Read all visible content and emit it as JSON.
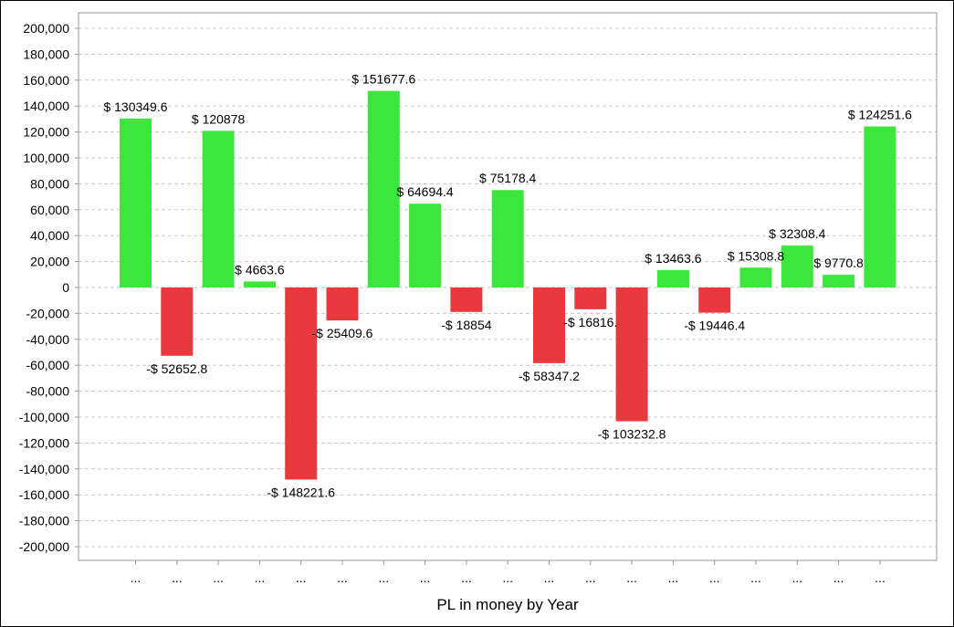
{
  "chart_data": {
    "type": "bar",
    "xlabel": "PL in money by Year",
    "ylabel": "",
    "ylim": [
      -200000,
      200000
    ],
    "ytick_step": 20000,
    "yticks": [
      "200,000",
      "180,000",
      "160,000",
      "140,000",
      "120,000",
      "100,000",
      "80,000",
      "60,000",
      "40,000",
      "20,000",
      "0",
      "-20,000",
      "-40,000",
      "-60,000",
      "-80,000",
      "-100,000",
      "-120,000",
      "-140,000",
      "-160,000",
      "-180,000",
      "-200,000"
    ],
    "grid": true,
    "colors": {
      "positive": "#3ce63c",
      "negative": "#e83a3e"
    },
    "categories": [
      "...",
      "...",
      "...",
      "...",
      "...",
      "...",
      "...",
      "...",
      "...",
      "...",
      "...",
      "...",
      "...",
      "...",
      "...",
      "...",
      "...",
      "...",
      "..."
    ],
    "values": [
      130349.6,
      -52652.8,
      120878,
      4663.6,
      -148221.6,
      -25409.6,
      151677.6,
      64694.4,
      -18854,
      75178.4,
      -58347.2,
      -16816,
      -103232.8,
      13463.6,
      -19446.4,
      15308.8,
      32308.4,
      9770.8,
      124251.6
    ],
    "data_labels": [
      "$ 130349.6",
      "-$ 52652.8",
      "$ 120878",
      "$ 4663.6",
      "-$ 148221.6",
      "-$ 25409.6",
      "$ 151677.6",
      "$ 64694.4",
      "-$ 18854",
      "$ 75178.4",
      "-$ 58347.2",
      "-$ 16816.",
      "-$ 103232.8",
      "$ 13463.6",
      "-$ 19446.4",
      "$ 15308.8",
      "$ 32308.4",
      "$ 9770.8",
      "$ 124251.6"
    ]
  }
}
